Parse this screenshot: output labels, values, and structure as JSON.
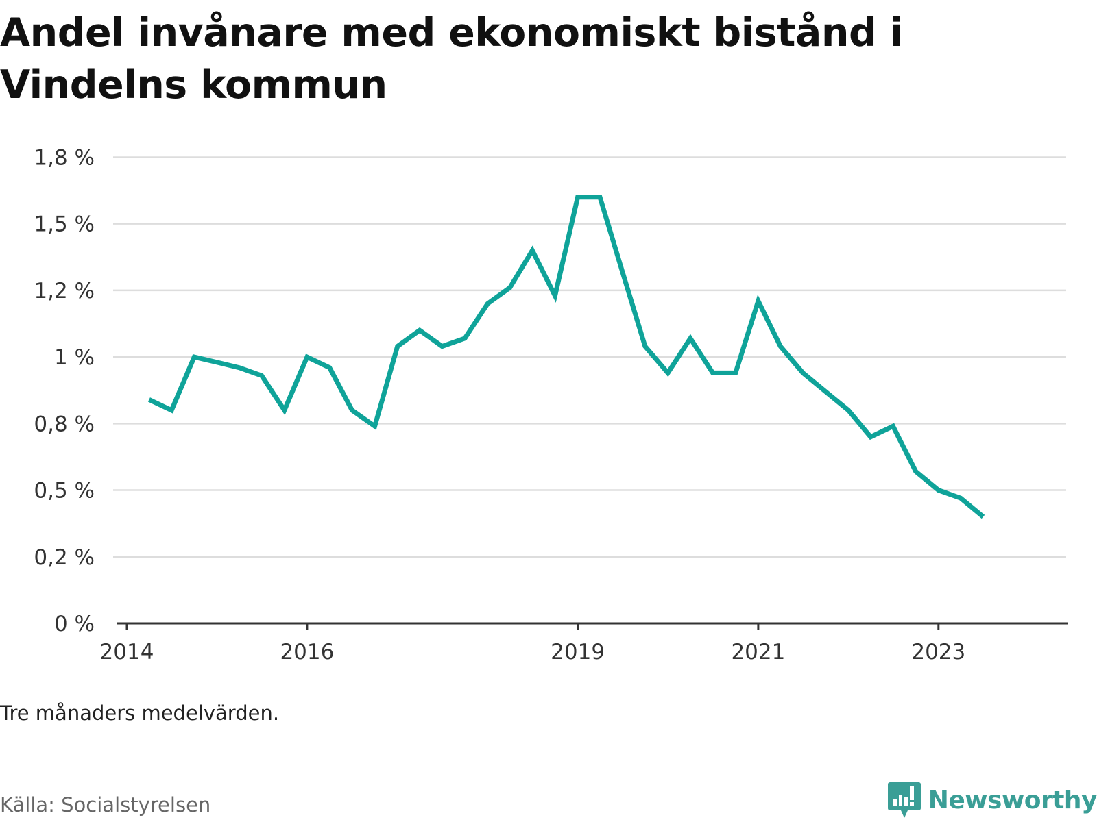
{
  "title": "Andel invånare med ekonomiskt bistånd i Vindelns kommun",
  "note": "Tre månaders medelvärden.",
  "source": "Källa: Socialstyrelsen",
  "brand": {
    "name": "Newsworthy",
    "icon": "newsworthy-logo-icon"
  },
  "colors": {
    "line": "#0fa399",
    "grid": "#dddddd",
    "axis": "#333333",
    "brand": "#3a9e96"
  },
  "chart_data": {
    "type": "line",
    "title": "Andel invånare med ekonomiskt bistånd i Vindelns kommun",
    "xlabel": "",
    "ylabel": "",
    "unit": "%",
    "ylim": [
      0,
      1.8
    ],
    "xlim": [
      "2014-01-01",
      "2024-06-01"
    ],
    "grid": true,
    "legend": "none",
    "y_ticks": [
      {
        "value": 0,
        "label": "0 %"
      },
      {
        "value": 0.25,
        "label": "0,2 %"
      },
      {
        "value": 0.5,
        "label": "0,5 %"
      },
      {
        "value": 0.75,
        "label": "0,8 %"
      },
      {
        "value": 1.0,
        "label": "1 %"
      },
      {
        "value": 1.25,
        "label": "1,2 %"
      },
      {
        "value": 1.5,
        "label": "1,5 %"
      },
      {
        "value": 1.75,
        "label": "1,8 %"
      }
    ],
    "x_ticks": [
      {
        "value": "2014-01-01",
        "label": "2014"
      },
      {
        "value": "2016-01-01",
        "label": "2016"
      },
      {
        "value": "2019-01-01",
        "label": "2019"
      },
      {
        "value": "2021-01-01",
        "label": "2021"
      },
      {
        "value": "2023-01-01",
        "label": "2023"
      }
    ],
    "series": [
      {
        "x": [
          "2014-04-01",
          "2014-07-01",
          "2014-10-01",
          "2015-01-01",
          "2015-04-01",
          "2015-07-01",
          "2015-10-01",
          "2016-01-01",
          "2016-04-01",
          "2016-07-01",
          "2016-10-01",
          "2017-01-01",
          "2017-04-01",
          "2017-07-01",
          "2017-10-01",
          "2018-01-01",
          "2018-04-01",
          "2018-07-01",
          "2018-10-01",
          "2019-01-01",
          "2019-04-01",
          "2019-07-01",
          "2019-10-01",
          "2020-01-01",
          "2020-04-01",
          "2020-07-01",
          "2020-10-01",
          "2021-01-01",
          "2021-04-01",
          "2021-07-01",
          "2021-10-01",
          "2022-01-01",
          "2022-04-01",
          "2022-07-01",
          "2022-10-01",
          "2023-01-01",
          "2023-04-01",
          "2023-07-01"
        ],
        "values": [
          0.84,
          0.8,
          1.0,
          0.98,
          0.96,
          0.93,
          0.8,
          1.0,
          0.96,
          0.8,
          0.74,
          1.04,
          1.1,
          1.04,
          1.07,
          1.2,
          1.26,
          1.4,
          1.23,
          1.6,
          1.6,
          1.32,
          1.04,
          0.94,
          1.07,
          0.94,
          0.94,
          1.21,
          1.04,
          0.94,
          0.87,
          0.8,
          0.7,
          0.74,
          0.57,
          0.5,
          0.47,
          0.4
        ]
      }
    ]
  }
}
